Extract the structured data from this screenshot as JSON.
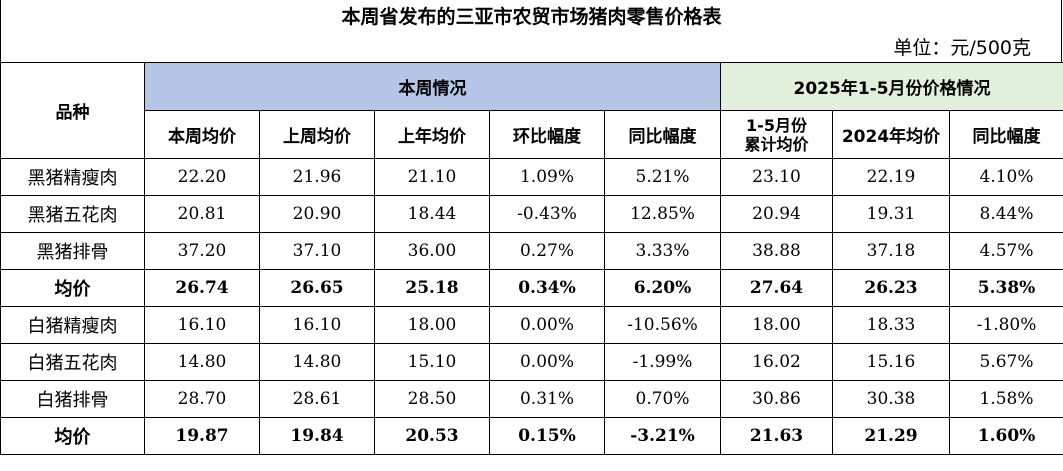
{
  "title": "本周省发布的三亚市农贸市场猪肉零售价格表",
  "unit": "单位：元/500克",
  "header": {
    "variety": "品种",
    "this_week_group": "本周情况",
    "period_group": "2025年1-5月份价格情况",
    "columns": [
      "本周均价",
      "上周均价",
      "上年均价",
      "环比幅度",
      "同比幅度",
      "1-5月份累计均价",
      "2024年均价",
      "同比幅度"
    ]
  },
  "rows": [
    {
      "name": "黑猪精瘦肉",
      "values": [
        "22.20",
        "21.96",
        "21.10",
        "1.09%",
        "5.21%",
        "23.10",
        "22.19",
        "4.10%"
      ],
      "avg": false
    },
    {
      "name": "黑猪五花肉",
      "values": [
        "20.81",
        "20.90",
        "18.44",
        "-0.43%",
        "12.85%",
        "20.94",
        "19.31",
        "8.44%"
      ],
      "avg": false
    },
    {
      "name": "黑猪排骨",
      "values": [
        "37.20",
        "37.10",
        "36.00",
        "0.27%",
        "3.33%",
        "38.88",
        "37.18",
        "4.57%"
      ],
      "avg": false
    },
    {
      "name": "均价",
      "values": [
        "26.74",
        "26.65",
        "25.18",
        "0.34%",
        "6.20%",
        "27.64",
        "26.23",
        "5.38%"
      ],
      "avg": true
    },
    {
      "name": "白猪精瘦肉",
      "values": [
        "16.10",
        "16.10",
        "18.00",
        "0.00%",
        "-10.56%",
        "18.00",
        "18.33",
        "-1.80%"
      ],
      "avg": false
    },
    {
      "name": "白猪五花肉",
      "values": [
        "14.80",
        "14.80",
        "15.10",
        "0.00%",
        "-1.99%",
        "16.02",
        "15.16",
        "5.67%"
      ],
      "avg": false
    },
    {
      "name": "白猪排骨",
      "values": [
        "28.70",
        "28.61",
        "28.50",
        "0.31%",
        "0.70%",
        "30.86",
        "30.38",
        "1.58%"
      ],
      "avg": false
    },
    {
      "name": "均价",
      "values": [
        "19.87",
        "19.84",
        "20.53",
        "0.15%",
        "-3.21%",
        "21.63",
        "21.29",
        "1.60%"
      ],
      "avg": true
    }
  ]
}
